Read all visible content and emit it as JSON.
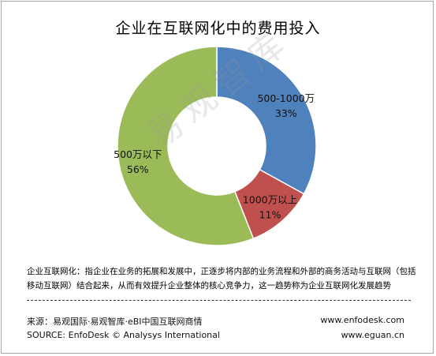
{
  "title": "企业在互联网化中的费用投入",
  "watermark": "易观智库",
  "chart_data": {
    "type": "pie",
    "style": "donut",
    "title": "企业在互联网化中的费用投入",
    "slices": [
      {
        "label": "500-1000万",
        "value": 33,
        "percent_label": "33%",
        "color": "#4f81bd"
      },
      {
        "label": "1000万以上",
        "value": 11,
        "percent_label": "11%",
        "color": "#c0504d"
      },
      {
        "label": "500万以下",
        "value": 56,
        "percent_label": "56%",
        "color": "#9bbb59"
      }
    ]
  },
  "description": "企业互联网化：指企业在业务的拓展和发展中，正逐步将内部的业务流程和外部的商务活动与互联网（包括移动互联网）结合起来，从而有效提升企业整体的核心竞争力，这一趋势称为企业互联网化发展趋势",
  "footer": {
    "source_cn": "来源：易观国际·易观智库·eBI中国互联网商情",
    "source_en": "SOURCE:  EnfoDesk © Analysys International",
    "url_1": "www.enfodesk.com",
    "url_2": "www.eguan.cn"
  }
}
